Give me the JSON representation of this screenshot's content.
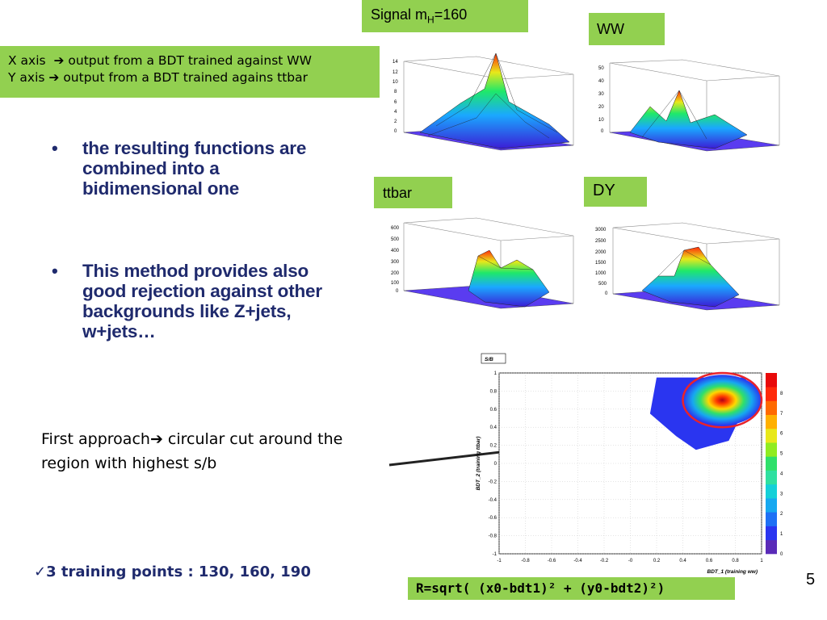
{
  "labels": {
    "signal": "Signal m",
    "signal_sub": "H",
    "signal_val": "=160",
    "ww": "WW",
    "ttbar": "ttbar",
    "dy": "DY"
  },
  "axis_note": {
    "x_prefix": "X axis",
    "x_text": "output from a BDT trained against WW",
    "y_prefix": "Y axis",
    "y_text": "output from a BDT trained agains ttbar"
  },
  "bullets": [
    {
      "text": "the resulting functions are combined into a bidimensional one"
    },
    {
      "text": "This method provides also good rejection against other backgrounds like Z+jets, w+jets…"
    }
  ],
  "approach": {
    "prefix": "First approach",
    "suffix": "circular cut around the region with highest s/b"
  },
  "training": "3  training points  :  130, 160, 190",
  "formula": "R=sqrt( (x0-bdt1)² + (y0-bdt2)²)",
  "page_number": "5",
  "plots3d": [
    {
      "zticks": [
        "14",
        "12",
        "10",
        "8",
        "6",
        "4",
        "2",
        "0"
      ]
    },
    {
      "zticks": [
        "50",
        "40",
        "30",
        "20",
        "10",
        "0"
      ]
    },
    {
      "zticks": [
        "600",
        "500",
        "400",
        "300",
        "200",
        "100",
        "0"
      ]
    },
    {
      "zticks": [
        "3000",
        "2500",
        "2000",
        "1500",
        "1000",
        "500",
        "0"
      ]
    }
  ],
  "chart_data": {
    "type": "heatmap",
    "title": "S/B",
    "xlabel": "BDT_1 (training ww)",
    "ylabel": "BDT_2 (training ttbar)",
    "xlim": [
      -1,
      1
    ],
    "ylim": [
      -1,
      1
    ],
    "xticks": [
      "-1",
      "-0.8",
      "-0.6",
      "-0.4",
      "-0.2",
      "-0",
      "0.2",
      "0.4",
      "0.6",
      "0.8",
      "1"
    ],
    "yticks": [
      "1",
      "0.8",
      "0.6",
      "0.4",
      "0.2",
      "0",
      "-0.2",
      "-0.4",
      "-0.6",
      "-0.8",
      "-1"
    ],
    "zlim": [
      0,
      9
    ],
    "zticks": [
      "8",
      "7",
      "6",
      "5",
      "4",
      "3",
      "2",
      "1",
      "0"
    ],
    "peak": {
      "x": 0.7,
      "y": 0.7,
      "value": 8.5
    },
    "cut_circle": {
      "x0": 0.7,
      "y0": 0.7,
      "radius": 0.3
    }
  },
  "colors": {
    "green_box": "#92d050",
    "bullet_text": "#1f2a6d",
    "circle": "#e8232b",
    "arrow": "#222222"
  }
}
